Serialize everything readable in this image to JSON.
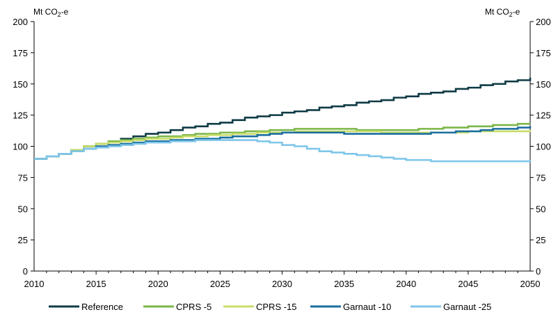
{
  "chart_data": {
    "type": "line",
    "y_unit_left": "Mt CO",
    "y_unit_right": "Mt CO",
    "unit_subscript": "2",
    "unit_suffix": "-e",
    "xlim": [
      2010,
      2050
    ],
    "ylim": [
      0,
      200
    ],
    "x_ticks": [
      2010,
      2015,
      2020,
      2025,
      2030,
      2035,
      2040,
      2045,
      2050
    ],
    "y_ticks": [
      0,
      25,
      50,
      75,
      100,
      125,
      150,
      175,
      200
    ],
    "grid": false,
    "legend_position": "bottom",
    "x": [
      2010,
      2011,
      2012,
      2013,
      2014,
      2015,
      2016,
      2017,
      2018,
      2019,
      2020,
      2021,
      2022,
      2023,
      2024,
      2025,
      2026,
      2027,
      2028,
      2029,
      2030,
      2031,
      2032,
      2033,
      2034,
      2035,
      2036,
      2037,
      2038,
      2039,
      2040,
      2041,
      2042,
      2043,
      2044,
      2045,
      2046,
      2047,
      2048,
      2049,
      2050
    ],
    "series": [
      {
        "name": "Reference",
        "color": "#0e3a44",
        "values": [
          90,
          92,
          94,
          97,
          100,
          102,
          104,
          106,
          108,
          110,
          111,
          113,
          115,
          116,
          118,
          119,
          121,
          123,
          124,
          125,
          127,
          128,
          129,
          131,
          132,
          133,
          135,
          136,
          137,
          139,
          140,
          142,
          143,
          144,
          146,
          147,
          149,
          150,
          152,
          153,
          155
        ]
      },
      {
        "name": "CPRS -5",
        "color": "#7ab648",
        "values": [
          90,
          92,
          94,
          97,
          100,
          102,
          104,
          105,
          106,
          107,
          108,
          108,
          109,
          110,
          110,
          111,
          111,
          112,
          112,
          113,
          113,
          114,
          114,
          114,
          114,
          114,
          113,
          113,
          113,
          113,
          113,
          114,
          114,
          115,
          115,
          116,
          116,
          117,
          117,
          118,
          118
        ]
      },
      {
        "name": "CPRS -15",
        "color": "#c8dd6a",
        "values": [
          90,
          92,
          94,
          97,
          100,
          102,
          103,
          104,
          105,
          106,
          106,
          107,
          108,
          108,
          109,
          109,
          110,
          110,
          111,
          111,
          111,
          112,
          112,
          112,
          112,
          112,
          112,
          112,
          111,
          111,
          111,
          111,
          111,
          111,
          111,
          112,
          112,
          112,
          112,
          112,
          113
        ]
      },
      {
        "name": "Garnaut -10",
        "color": "#1a6e9e",
        "values": [
          90,
          92,
          94,
          96,
          98,
          100,
          101,
          102,
          103,
          104,
          104,
          105,
          105,
          106,
          106,
          107,
          108,
          108,
          109,
          110,
          111,
          111,
          111,
          111,
          111,
          110,
          110,
          110,
          110,
          110,
          110,
          110,
          111,
          111,
          112,
          112,
          113,
          114,
          114,
          115,
          116
        ]
      },
      {
        "name": "Garnaut -25",
        "color": "#7fc6ea",
        "values": [
          90,
          92,
          94,
          96,
          98,
          99,
          100,
          101,
          102,
          103,
          103,
          104,
          104,
          105,
          105,
          105,
          105,
          105,
          104,
          103,
          101,
          100,
          98,
          96,
          95,
          94,
          93,
          92,
          91,
          90,
          89,
          89,
          88,
          88,
          88,
          88,
          88,
          88,
          88,
          88,
          89
        ]
      }
    ]
  }
}
